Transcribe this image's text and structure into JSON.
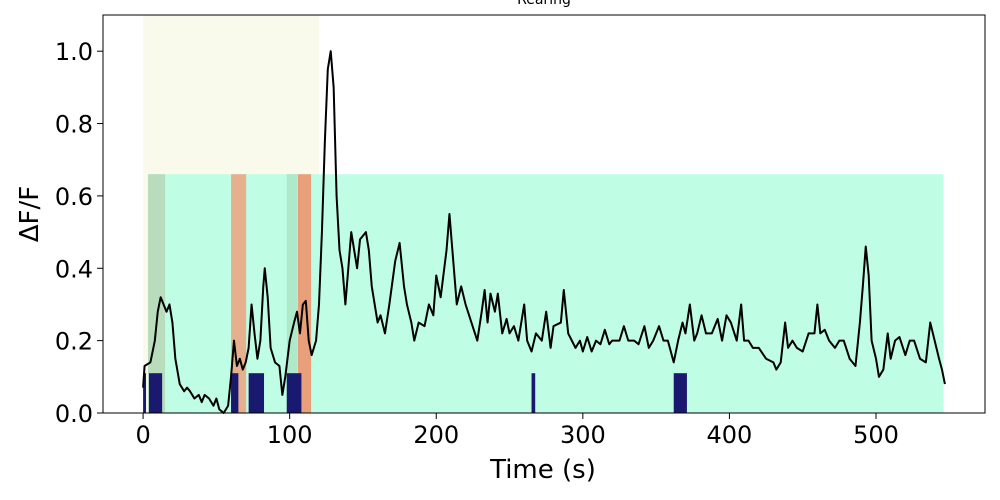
{
  "chart_data": {
    "type": "line",
    "title": "Rearing",
    "x_label": "Time (s)",
    "y_label": "ΔF/F",
    "xlim": [
      -27.35,
      574.35
    ],
    "ylim": [
      0,
      1.1
    ],
    "xticks": [
      0,
      100,
      200,
      300,
      400,
      500
    ],
    "yticks": [
      {
        "value": 0,
        "label": "0.0"
      },
      {
        "value": 0.2,
        "label": "0.2"
      },
      {
        "value": 0.4,
        "label": "0.4"
      },
      {
        "value": 0.6,
        "label": "0.6"
      },
      {
        "value": 0.8,
        "label": "0.8"
      },
      {
        "value": 1.0,
        "label": "1.0"
      }
    ],
    "highlights": [
      {
        "x": [
          0,
          120
        ],
        "y": [
          0,
          1.1
        ],
        "color": "#f9f9ec"
      },
      {
        "x": [
          3.4,
          546
        ],
        "y": [
          0,
          0.66
        ],
        "color": "#bffde5"
      },
      {
        "x": [
          3.4,
          15
        ],
        "y": [
          0,
          0.66
        ],
        "color": "#b8dcbc"
      },
      {
        "x": [
          98,
          105.5
        ],
        "y": [
          0,
          0.66
        ],
        "color": "#aee9c9"
      },
      {
        "x": [
          60,
          70.3
        ],
        "y": [
          0,
          0.66
        ],
        "color": "#e6b08e"
      },
      {
        "x": [
          105.7,
          114.6
        ],
        "y": [
          0,
          0.66
        ],
        "color": "#e9a07a"
      }
    ],
    "events": {
      "color": "#191970",
      "height": 0.11,
      "intervals": [
        [
          0,
          2
        ],
        [
          4,
          13
        ],
        [
          60,
          65
        ],
        [
          72,
          82.5
        ],
        [
          98,
          108
        ],
        [
          265,
          267.5
        ],
        [
          362,
          371
        ]
      ]
    },
    "line_color": "#000000",
    "x": [
      0,
      1,
      5,
      8,
      10,
      12,
      14,
      16,
      18,
      20,
      22,
      25,
      28,
      30,
      32,
      35,
      38,
      40,
      42,
      45,
      48,
      50,
      52,
      55,
      58,
      60,
      62,
      64,
      66,
      68,
      70,
      72,
      74,
      76,
      78,
      80,
      82,
      83,
      85,
      87,
      90,
      93,
      95,
      97,
      100,
      103,
      105,
      107,
      109,
      111,
      113,
      115,
      118,
      120,
      122,
      124,
      126,
      128,
      130,
      132,
      134,
      136,
      138,
      140,
      142,
      144,
      146,
      148,
      150,
      152,
      154,
      156,
      158,
      160,
      162,
      165,
      168,
      172,
      175,
      178,
      180,
      183,
      185,
      188,
      192,
      195,
      198,
      200,
      203,
      207,
      209,
      211,
      214,
      217,
      220,
      224,
      228,
      231,
      233,
      235,
      237,
      240,
      242,
      245,
      248,
      250,
      253,
      256,
      260,
      262,
      265,
      268,
      272,
      275,
      278,
      280,
      285,
      287,
      290,
      295,
      298,
      300,
      303,
      306,
      309,
      312,
      315,
      318,
      320,
      325,
      328,
      331,
      335,
      338,
      342,
      345,
      348,
      352,
      355,
      358,
      362,
      365,
      368,
      370,
      373,
      376,
      378,
      381,
      384,
      388,
      392,
      395,
      398,
      401,
      405,
      408,
      410,
      413,
      416,
      420,
      425,
      430,
      432,
      435,
      438,
      440,
      443,
      446,
      450,
      454,
      458,
      460,
      462,
      465,
      468,
      472,
      475,
      478,
      482,
      486,
      489,
      491,
      493,
      495,
      497,
      500,
      502,
      505,
      508,
      510,
      513,
      516,
      520,
      523,
      526,
      530,
      534,
      537,
      540,
      543,
      545,
      547
    ],
    "values": [
      0.07,
      0.13,
      0.14,
      0.2,
      0.28,
      0.32,
      0.3,
      0.28,
      0.3,
      0.25,
      0.15,
      0.08,
      0.06,
      0.07,
      0.06,
      0.04,
      0.05,
      0.03,
      0.05,
      0.04,
      0.02,
      0.04,
      0.01,
      0.0,
      0.02,
      0.1,
      0.2,
      0.13,
      0.15,
      0.12,
      0.14,
      0.18,
      0.3,
      0.22,
      0.15,
      0.2,
      0.35,
      0.4,
      0.32,
      0.18,
      0.14,
      0.13,
      0.05,
      0.1,
      0.2,
      0.25,
      0.28,
      0.22,
      0.3,
      0.31,
      0.2,
      0.16,
      0.2,
      0.3,
      0.5,
      0.75,
      0.95,
      1.0,
      0.9,
      0.6,
      0.45,
      0.4,
      0.3,
      0.4,
      0.5,
      0.45,
      0.4,
      0.48,
      0.49,
      0.5,
      0.45,
      0.35,
      0.3,
      0.25,
      0.27,
      0.22,
      0.3,
      0.42,
      0.47,
      0.35,
      0.3,
      0.25,
      0.2,
      0.25,
      0.24,
      0.3,
      0.27,
      0.38,
      0.32,
      0.45,
      0.55,
      0.45,
      0.3,
      0.35,
      0.3,
      0.25,
      0.2,
      0.28,
      0.34,
      0.25,
      0.33,
      0.28,
      0.33,
      0.22,
      0.26,
      0.22,
      0.24,
      0.2,
      0.3,
      0.2,
      0.17,
      0.22,
      0.2,
      0.28,
      0.18,
      0.24,
      0.25,
      0.34,
      0.22,
      0.18,
      0.2,
      0.17,
      0.21,
      0.17,
      0.2,
      0.19,
      0.23,
      0.19,
      0.2,
      0.2,
      0.24,
      0.2,
      0.2,
      0.19,
      0.24,
      0.18,
      0.2,
      0.24,
      0.2,
      0.2,
      0.14,
      0.2,
      0.25,
      0.22,
      0.3,
      0.2,
      0.22,
      0.27,
      0.22,
      0.22,
      0.26,
      0.2,
      0.27,
      0.25,
      0.2,
      0.3,
      0.2,
      0.2,
      0.18,
      0.18,
      0.15,
      0.14,
      0.12,
      0.14,
      0.25,
      0.18,
      0.2,
      0.18,
      0.17,
      0.22,
      0.22,
      0.3,
      0.22,
      0.23,
      0.2,
      0.18,
      0.2,
      0.2,
      0.15,
      0.13,
      0.25,
      0.35,
      0.46,
      0.38,
      0.2,
      0.15,
      0.1,
      0.12,
      0.22,
      0.15,
      0.2,
      0.21,
      0.16,
      0.2,
      0.2,
      0.15,
      0.14,
      0.25,
      0.2,
      0.15,
      0.12,
      0.08
    ]
  }
}
